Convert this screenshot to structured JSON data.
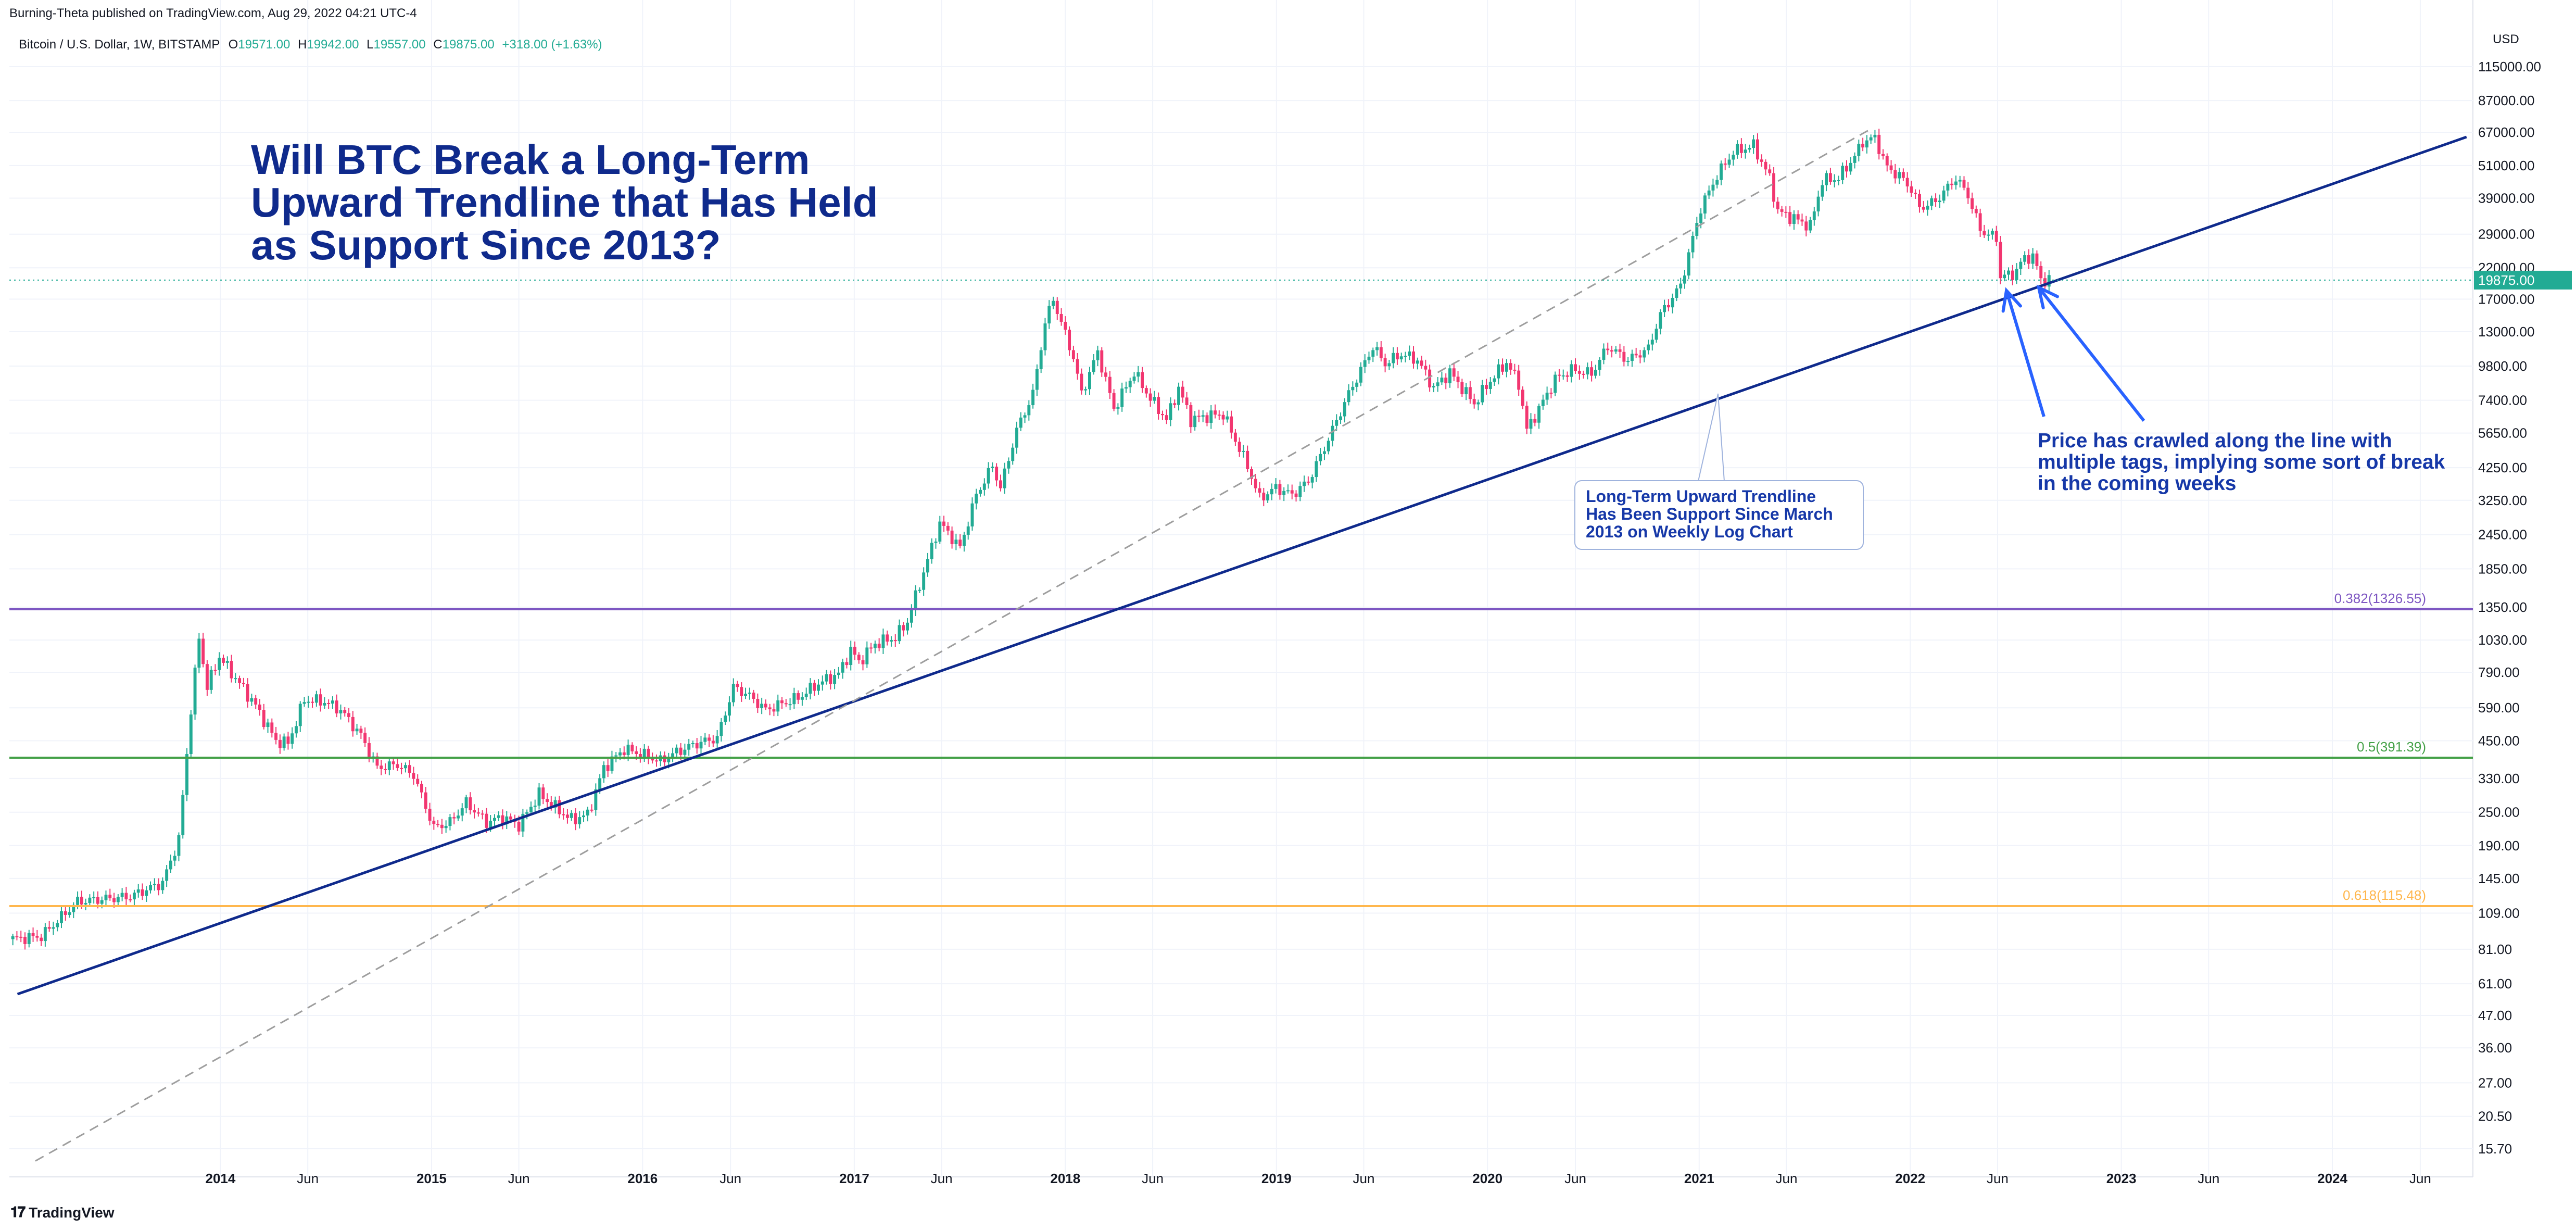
{
  "header": {
    "published": "Burning-Theta published on TradingView.com, Aug 29, 2022 04:21 UTC-4",
    "symbol": "Bitcoin / U.S. Dollar, 1W, BITSTAMP",
    "o_label": "O",
    "o_value": "19571.00",
    "h_label": "H",
    "h_value": "19942.00",
    "l_label": "L",
    "l_value": "19557.00",
    "c_label": "C",
    "c_value": "19875.00",
    "change": "+318.00 (+1.63%)"
  },
  "annotations": {
    "title_lines": [
      "Will BTC Break a Long-Term",
      "Upward Trendline that Has Held",
      "as Support Since 2013?"
    ],
    "callout_lines": [
      "Long-Term Upward Trendline",
      "Has Been Support Since March",
      "2013 on Weekly Log Chart"
    ],
    "note_lines": [
      "Price has crawled along the line with",
      "multiple tags, implying some sort of break",
      "in the coming weeks"
    ]
  },
  "footer": {
    "brand": "TradingView",
    "icon": "tradingview-logo-icon"
  },
  "colors": {
    "up": "#22ab94",
    "down": "#f23670",
    "trend": "#0f2a8c",
    "arrow": "#2962ff",
    "fib382": "#7e57c2",
    "fib5": "#43a047",
    "fib618": "#ffb74d",
    "price_tag": "#22ab94"
  },
  "chart_data": {
    "type": "candlestick",
    "axis_currency": "USD",
    "y_scale": "log",
    "y_ticks": [
      "115000.00",
      "87000.00",
      "67000.00",
      "51000.00",
      "39000.00",
      "29000.00",
      "22000.00",
      "17000.00",
      "13000.00",
      "9800.00",
      "7400.00",
      "5650.00",
      "4250.00",
      "3250.00",
      "2450.00",
      "1850.00",
      "1350.00",
      "1030.00",
      "790.00",
      "590.00",
      "450.00",
      "330.00",
      "250.00",
      "190.00",
      "145.00",
      "109.00",
      "81.00",
      "61.00",
      "47.00",
      "36.00",
      "27.00",
      "20.50",
      "15.70"
    ],
    "x_ticks": [
      {
        "label": "2014",
        "date": "2014-01-01"
      },
      {
        "label": "Jun",
        "date": "2014-06-01"
      },
      {
        "label": "2015",
        "date": "2015-01-01"
      },
      {
        "label": "Jun",
        "date": "2015-06-01"
      },
      {
        "label": "2016",
        "date": "2016-01-01"
      },
      {
        "label": "Jun",
        "date": "2016-06-01"
      },
      {
        "label": "2017",
        "date": "2017-01-01"
      },
      {
        "label": "Jun",
        "date": "2017-06-01"
      },
      {
        "label": "2018",
        "date": "2018-01-01"
      },
      {
        "label": "Jun",
        "date": "2018-06-01"
      },
      {
        "label": "2019",
        "date": "2019-01-01"
      },
      {
        "label": "Jun",
        "date": "2019-06-01"
      },
      {
        "label": "2020",
        "date": "2020-01-01"
      },
      {
        "label": "Jun",
        "date": "2020-06-01"
      },
      {
        "label": "2021",
        "date": "2021-01-01"
      },
      {
        "label": "Jun",
        "date": "2021-06-01"
      },
      {
        "label": "2022",
        "date": "2022-01-01"
      },
      {
        "label": "Jun",
        "date": "2022-06-01"
      },
      {
        "label": "2023",
        "date": "2023-01-01"
      },
      {
        "label": "Jun",
        "date": "2023-06-01"
      },
      {
        "label": "2024",
        "date": "2024-01-01"
      },
      {
        "label": "Jun",
        "date": "2024-06-01"
      }
    ],
    "last_price": "19875.00",
    "horizontal_levels": [
      {
        "label": "0.382(1326.55)",
        "value": 1326.55,
        "color": "#7e57c2"
      },
      {
        "label": "0.5(391.39)",
        "value": 391.39,
        "color": "#43a047"
      },
      {
        "label": "0.618(115.48)",
        "value": 115.48,
        "color": "#ffb74d"
      }
    ],
    "trendlines": [
      {
        "name": "long-term-support",
        "style": "solid",
        "color": "#0f2a8c",
        "from": {
          "date": "2013-01-15",
          "price": 56
        },
        "to": {
          "date": "2024-08-20",
          "price": 64500
        }
      },
      {
        "name": "dashed-trend",
        "style": "dashed",
        "color": "#9e9e9e",
        "from": {
          "date": "2013-02-15",
          "price": 14.2
        },
        "to": {
          "date": "2021-10-20",
          "price": 68000
        }
      }
    ],
    "price_path": [
      [
        "2013-01-07",
        88
      ],
      [
        "2013-03-04",
        90
      ],
      [
        "2013-05-06",
        120
      ],
      [
        "2013-08-05",
        125
      ],
      [
        "2013-09-30",
        140
      ],
      [
        "2013-10-28",
        200
      ],
      [
        "2013-11-18",
        580
      ],
      [
        "2013-12-02",
        1050
      ],
      [
        "2013-12-16",
        700
      ],
      [
        "2014-01-06",
        900
      ],
      [
        "2014-02-10",
        720
      ],
      [
        "2014-03-10",
        600
      ],
      [
        "2014-04-14",
        450
      ],
      [
        "2014-05-05",
        440
      ],
      [
        "2014-06-02",
        630
      ],
      [
        "2014-07-07",
        620
      ],
      [
        "2014-08-04",
        580
      ],
      [
        "2014-09-08",
        470
      ],
      [
        "2014-10-06",
        360
      ],
      [
        "2014-11-10",
        370
      ],
      [
        "2014-12-08",
        340
      ],
      [
        "2015-01-12",
        220
      ],
      [
        "2015-02-09",
        230
      ],
      [
        "2015-03-09",
        270
      ],
      [
        "2015-04-13",
        230
      ],
      [
        "2015-05-11",
        240
      ],
      [
        "2015-06-08",
        225
      ],
      [
        "2015-07-13",
        290
      ],
      [
        "2015-08-10",
        260
      ],
      [
        "2015-09-07",
        235
      ],
      [
        "2015-10-05",
        245
      ],
      [
        "2015-11-02",
        360
      ],
      [
        "2015-12-07",
        420
      ],
      [
        "2016-01-11",
        400
      ],
      [
        "2016-02-08",
        380
      ],
      [
        "2016-03-07",
        410
      ],
      [
        "2016-04-11",
        440
      ],
      [
        "2016-05-16",
        460
      ],
      [
        "2016-06-13",
        700
      ],
      [
        "2016-07-11",
        650
      ],
      [
        "2016-08-08",
        580
      ],
      [
        "2016-09-05",
        610
      ],
      [
        "2016-10-03",
        640
      ],
      [
        "2016-11-07",
        720
      ],
      [
        "2016-12-12",
        780
      ],
      [
        "2017-01-02",
        950
      ],
      [
        "2017-01-16",
        860
      ],
      [
        "2017-02-13",
        1000
      ],
      [
        "2017-03-20",
        1050
      ],
      [
        "2017-04-10",
        1200
      ],
      [
        "2017-05-08",
        1800
      ],
      [
        "2017-06-05",
        2700
      ],
      [
        "2017-07-10",
        2200
      ],
      [
        "2017-08-07",
        3400
      ],
      [
        "2017-09-04",
        4300
      ],
      [
        "2017-09-18",
        3600
      ],
      [
        "2017-10-16",
        5800
      ],
      [
        "2017-11-13",
        7800
      ],
      [
        "2017-12-04",
        14000
      ],
      [
        "2017-12-18",
        17000
      ],
      [
        "2018-01-01",
        14000
      ],
      [
        "2018-01-22",
        10500
      ],
      [
        "2018-02-05",
        7800
      ],
      [
        "2018-03-05",
        11000
      ],
      [
        "2018-04-02",
        6900
      ],
      [
        "2018-05-07",
        9300
      ],
      [
        "2018-06-04",
        7500
      ],
      [
        "2018-07-02",
        6300
      ],
      [
        "2018-07-23",
        8200
      ],
      [
        "2018-08-13",
        6300
      ],
      [
        "2018-09-10",
        6500
      ],
      [
        "2018-10-08",
        6600
      ],
      [
        "2018-11-19",
        4300
      ],
      [
        "2018-12-10",
        3300
      ],
      [
        "2019-01-07",
        3600
      ],
      [
        "2019-02-04",
        3400
      ],
      [
        "2019-03-04",
        3800
      ],
      [
        "2019-04-01",
        5000
      ],
      [
        "2019-05-13",
        7800
      ],
      [
        "2019-06-24",
        11500
      ],
      [
        "2019-07-15",
        10000
      ],
      [
        "2019-08-12",
        10800
      ],
      [
        "2019-09-09",
        10300
      ],
      [
        "2019-10-07",
        8200
      ],
      [
        "2019-11-04",
        9300
      ],
      [
        "2019-12-16",
        7200
      ],
      [
        "2020-01-13",
        8700
      ],
      [
        "2020-02-10",
        10100
      ],
      [
        "2020-03-02",
        8500
      ],
      [
        "2020-03-16",
        5800
      ],
      [
        "2020-04-06",
        6900
      ],
      [
        "2020-05-04",
        8800
      ],
      [
        "2020-06-01",
        9500
      ],
      [
        "2020-07-06",
        9200
      ],
      [
        "2020-08-03",
        11500
      ],
      [
        "2020-09-07",
        10300
      ],
      [
        "2020-10-12",
        11300
      ],
      [
        "2020-11-02",
        15000
      ],
      [
        "2020-12-07",
        19000
      ],
      [
        "2020-12-28",
        28000
      ],
      [
        "2021-01-11",
        36000
      ],
      [
        "2021-02-08",
        47000
      ],
      [
        "2021-03-08",
        57000
      ],
      [
        "2021-04-12",
        60000
      ],
      [
        "2021-05-10",
        46000
      ],
      [
        "2021-05-24",
        35000
      ],
      [
        "2021-06-21",
        33000
      ],
      [
        "2021-07-19",
        31000
      ],
      [
        "2021-08-09",
        45000
      ],
      [
        "2021-09-06",
        46000
      ],
      [
        "2021-10-04",
        55000
      ],
      [
        "2021-10-18",
        62000
      ],
      [
        "2021-11-08",
        64000
      ],
      [
        "2021-11-29",
        50000
      ],
      [
        "2021-12-20",
        47000
      ],
      [
        "2022-01-10",
        42000
      ],
      [
        "2022-01-24",
        36000
      ],
      [
        "2022-02-21",
        38000
      ],
      [
        "2022-03-28",
        46000
      ],
      [
        "2022-04-18",
        40000
      ],
      [
        "2022-05-09",
        30000
      ],
      [
        "2022-06-06",
        28000
      ],
      [
        "2022-06-13",
        20500
      ],
      [
        "2022-07-04",
        20800
      ],
      [
        "2022-07-25",
        23800
      ],
      [
        "2022-08-08",
        24200
      ],
      [
        "2022-08-22",
        20000
      ],
      [
        "2022-08-29",
        19875
      ]
    ]
  }
}
